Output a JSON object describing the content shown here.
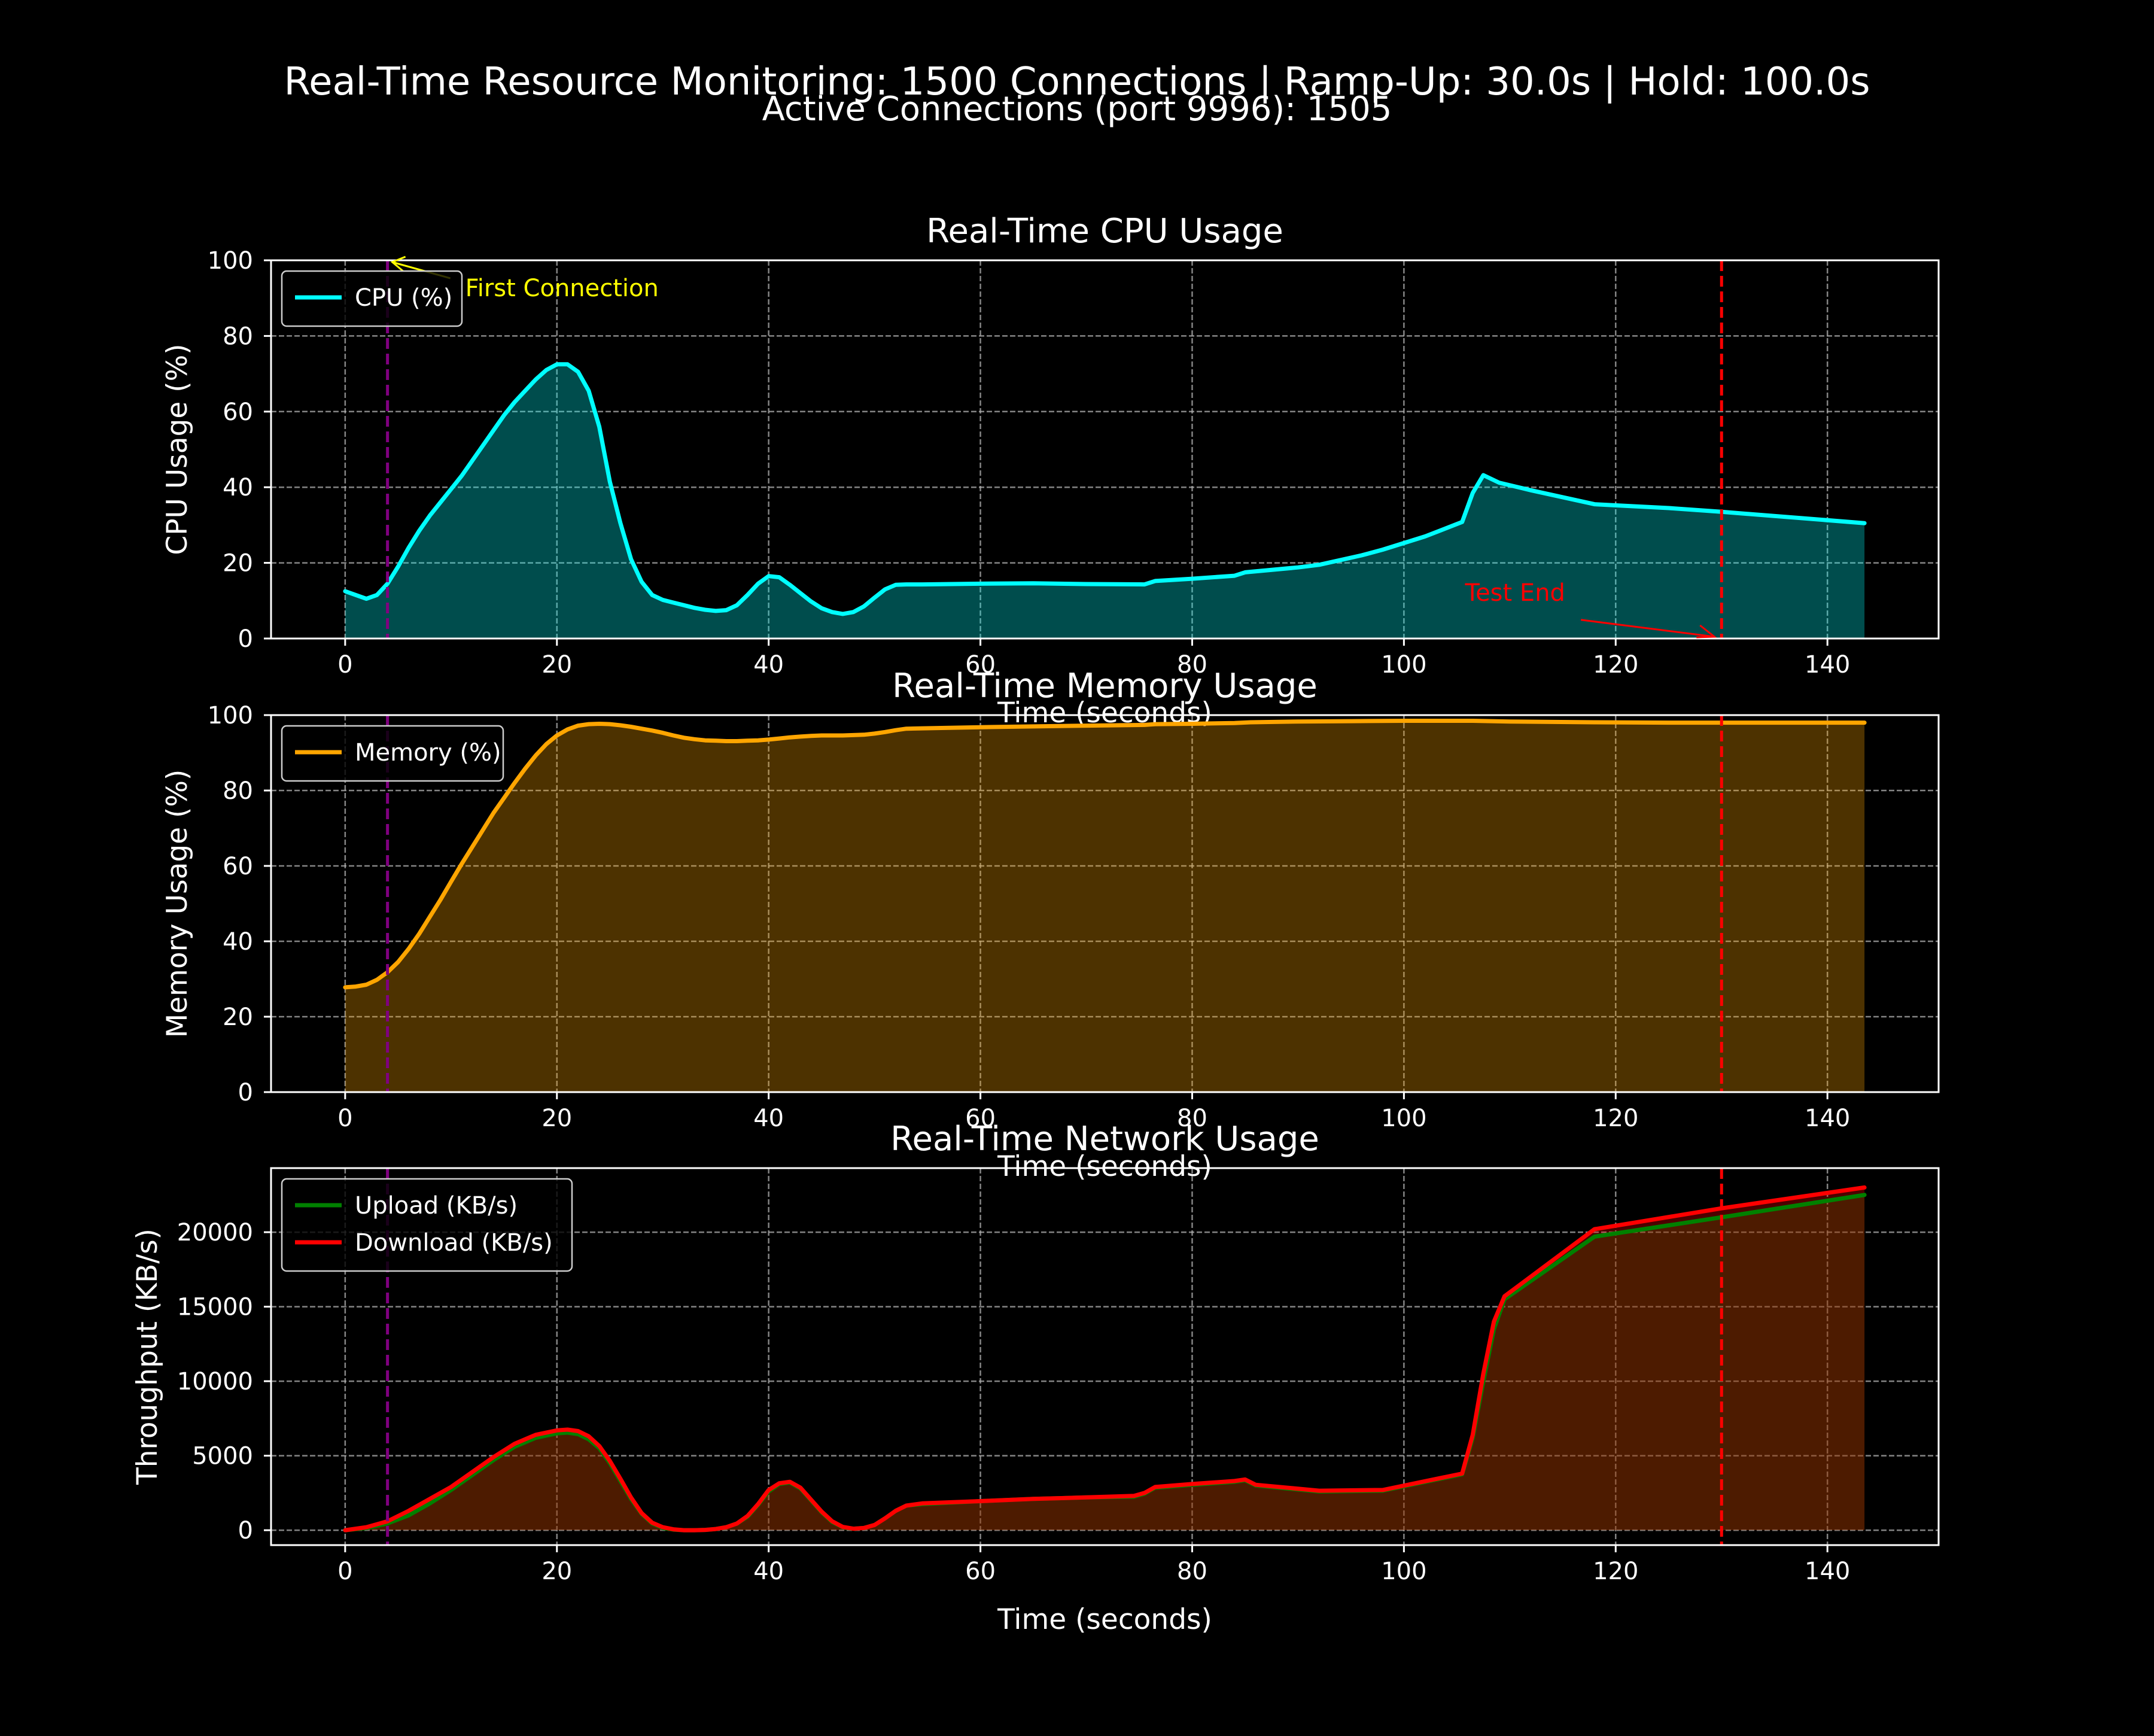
{
  "figure": {
    "suptitle": "Real-Time Resource Monitoring: 1500 Connections | Ramp-Up: 30.0s | Hold: 100.0s",
    "subtitle": "Active Connections (port 9996): 1505"
  },
  "colors": {
    "background": "#000000",
    "axes": "#ffffff",
    "grid": "#b0b0b0",
    "cpu": "#00ffff",
    "memory": "#ffa500",
    "upload": "#008000",
    "download": "#ff0000",
    "first_connection_marker": "#800080",
    "test_end_marker": "#ff0000",
    "first_connection_annotation": "#ffff00"
  },
  "chart_data": [
    {
      "type": "area",
      "title": "Real-Time CPU Usage",
      "xlabel": "Time (seconds)",
      "ylabel": "CPU Usage (%)",
      "xlim": [
        -7,
        150.5
      ],
      "ylim": [
        0,
        100
      ],
      "xticks": [
        0,
        20,
        40,
        60,
        80,
        100,
        120,
        140
      ],
      "yticks": [
        0,
        20,
        40,
        60,
        80,
        100
      ],
      "grid": true,
      "legend_position": "upper-left",
      "series": [
        {
          "name": "CPU (%)",
          "color": "#00ffff",
          "x": [
            0,
            1,
            2,
            3,
            4,
            5,
            6,
            7,
            8,
            9,
            10,
            11,
            12,
            13,
            14,
            15,
            16,
            17,
            18,
            19,
            20,
            21,
            22,
            23,
            24,
            25,
            26,
            27,
            28,
            29,
            30,
            31,
            32,
            33,
            34,
            35,
            36,
            37,
            38,
            39,
            40,
            41,
            42,
            43,
            44,
            45,
            46,
            47,
            48,
            49,
            50,
            51,
            52,
            53,
            54.5,
            60,
            65,
            70,
            75.5,
            76.5,
            80,
            84,
            85,
            90,
            92,
            96,
            98,
            102,
            105.5,
            106.5,
            107.5,
            109,
            112,
            118,
            125,
            130,
            143.5
          ],
          "values": [
            12.5,
            11.5,
            10.5,
            11.5,
            14.5,
            19,
            24,
            28.5,
            32.5,
            36,
            39.5,
            43,
            47,
            51,
            55,
            59,
            62.5,
            65.5,
            68.5,
            71,
            72.5,
            72.5,
            70.5,
            65.5,
            56,
            41.5,
            30.5,
            21,
            15,
            11.5,
            10.2,
            9.5,
            8.8,
            8.1,
            7.6,
            7.3,
            7.5,
            8.8,
            11.5,
            14.5,
            16.5,
            16.2,
            14.2,
            12,
            9.8,
            8,
            7,
            6.5,
            7,
            8.5,
            10.8,
            13,
            14.2,
            14.3,
            14.3,
            14.5,
            14.6,
            14.4,
            14.3,
            15.2,
            15.8,
            16.6,
            17.5,
            18.8,
            19.5,
            22,
            23.5,
            27,
            30.8,
            38.5,
            43.2,
            41.2,
            39.2,
            35.5,
            34.5,
            33.5,
            30.5
          ]
        }
      ],
      "annotations": [
        {
          "text": "First Connection",
          "x": 4,
          "y": 100
        },
        {
          "text": "Test End",
          "x": 130,
          "y": 0
        }
      ],
      "vlines": [
        {
          "x": 4,
          "style": "dashed",
          "color": "#800080"
        },
        {
          "x": 130,
          "style": "dashed",
          "color": "#ff0000"
        }
      ]
    },
    {
      "type": "area",
      "title": "Real-Time Memory Usage",
      "xlabel": "Time (seconds)",
      "ylabel": "Memory Usage (%)",
      "xlim": [
        -7,
        150.5
      ],
      "ylim": [
        0,
        100
      ],
      "xticks": [
        0,
        20,
        40,
        60,
        80,
        100,
        120,
        140
      ],
      "yticks": [
        0,
        20,
        40,
        60,
        80,
        100
      ],
      "grid": true,
      "legend_position": "upper-left",
      "series": [
        {
          "name": "Memory (%)",
          "color": "#ffa500",
          "x": [
            0,
            1,
            2,
            3,
            4,
            5,
            6,
            7,
            8,
            9,
            10,
            11,
            12,
            13,
            14,
            15,
            16,
            17,
            18,
            19,
            20,
            21,
            22,
            23,
            24,
            25,
            26,
            27,
            28,
            29,
            30,
            31,
            32,
            33,
            34,
            35,
            36,
            37,
            38,
            39,
            40,
            41,
            42,
            43,
            44,
            45,
            46,
            47,
            48,
            49,
            50,
            51,
            52,
            53,
            54.5,
            60,
            65,
            70,
            75.5,
            76.5,
            80,
            84,
            85.5,
            90,
            95,
            100,
            106.5,
            110,
            118,
            125,
            130,
            143.5
          ],
          "values": [
            27.8,
            28,
            28.5,
            29.8,
            31.8,
            34.5,
            38,
            42,
            46.5,
            51,
            55.8,
            60.5,
            65,
            69.5,
            74,
            78,
            82,
            85.8,
            89.3,
            92.3,
            94.6,
            96.2,
            97.2,
            97.6,
            97.7,
            97.6,
            97.3,
            96.9,
            96.4,
            95.9,
            95.3,
            94.6,
            94,
            93.6,
            93.3,
            93.2,
            93.1,
            93.1,
            93.2,
            93.3,
            93.5,
            93.8,
            94.1,
            94.3,
            94.5,
            94.6,
            94.6,
            94.6,
            94.7,
            94.8,
            95.1,
            95.5,
            96,
            96.4,
            96.5,
            96.8,
            97,
            97.2,
            97.4,
            97.6,
            97.7,
            97.9,
            98.1,
            98.3,
            98.4,
            98.5,
            98.5,
            98.3,
            98.1,
            98,
            98,
            98
          ]
        }
      ],
      "vlines": [
        {
          "x": 4,
          "style": "dashed",
          "color": "#800080"
        },
        {
          "x": 130,
          "style": "dashed",
          "color": "#ff0000"
        }
      ]
    },
    {
      "type": "area",
      "title": "Real-Time Network Usage",
      "xlabel": "Time (seconds)",
      "ylabel": "Throughput (KB/s)",
      "xlim": [
        -7,
        150.5
      ],
      "ylim": [
        -1000,
        24300
      ],
      "xticks": [
        0,
        20,
        40,
        60,
        80,
        100,
        120,
        140
      ],
      "yticks": [
        0,
        5000,
        10000,
        15000,
        20000
      ],
      "grid": true,
      "legend_position": "upper-left",
      "series": [
        {
          "name": "Upload (KB/s)",
          "color": "#008000",
          "x": [
            0,
            2,
            4,
            6,
            8,
            10,
            12,
            14,
            16,
            18,
            20,
            21,
            22,
            23,
            24,
            25,
            26,
            27,
            28,
            29,
            30,
            31,
            32,
            33,
            34,
            35,
            36,
            37,
            38,
            39,
            40,
            41,
            42,
            43,
            44,
            45,
            46,
            47,
            48,
            49,
            50,
            51,
            52,
            53,
            54.5,
            60,
            65,
            70,
            74.5,
            75.5,
            76.5,
            80,
            84,
            85,
            86,
            92,
            98,
            105.5,
            106.5,
            107.5,
            108.5,
            109.5,
            118,
            130,
            143.5
          ],
          "values": [
            0,
            150,
            450,
            1000,
            1800,
            2700,
            3700,
            4700,
            5600,
            6200,
            6500,
            6550,
            6450,
            6100,
            5500,
            4500,
            3300,
            2100,
            1100,
            450,
            150,
            40,
            0,
            0,
            20,
            80,
            200,
            450,
            900,
            1700,
            2600,
            3100,
            3200,
            2800,
            2000,
            1200,
            550,
            200,
            100,
            150,
            350,
            800,
            1300,
            1650,
            1750,
            1950,
            2100,
            2200,
            2250,
            2450,
            2850,
            3050,
            3250,
            3350,
            3000,
            2600,
            2650,
            3750,
            6200,
            10000,
            13500,
            15500,
            19700,
            21000,
            22500
          ]
        },
        {
          "name": "Download (KB/s)",
          "color": "#ff0000",
          "x": [
            0,
            2,
            4,
            6,
            8,
            10,
            12,
            14,
            16,
            18,
            20,
            21,
            22,
            23,
            24,
            25,
            26,
            27,
            28,
            29,
            30,
            31,
            32,
            33,
            34,
            35,
            36,
            37,
            38,
            39,
            40,
            41,
            42,
            43,
            44,
            45,
            46,
            47,
            48,
            49,
            50,
            51,
            52,
            53,
            54.5,
            60,
            65,
            70,
            74.5,
            75.5,
            76.5,
            80,
            84,
            85,
            86,
            92,
            98,
            105.5,
            106.5,
            107.5,
            108.5,
            109.5,
            118,
            130,
            143.5
          ],
          "values": [
            0,
            200,
            600,
            1300,
            2100,
            2900,
            3900,
            4900,
            5800,
            6400,
            6700,
            6750,
            6650,
            6300,
            5650,
            4650,
            3450,
            2200,
            1150,
            500,
            200,
            60,
            0,
            0,
            20,
            80,
            200,
            450,
            950,
            1750,
            2700,
            3150,
            3250,
            2850,
            2050,
            1250,
            600,
            220,
            100,
            150,
            350,
            800,
            1300,
            1650,
            1800,
            1950,
            2100,
            2200,
            2300,
            2500,
            2900,
            3100,
            3300,
            3400,
            3050,
            2650,
            2700,
            3800,
            6400,
            10500,
            14000,
            15700,
            20200,
            21600,
            23000
          ]
        }
      ],
      "vlines": [
        {
          "x": 4,
          "style": "dashed",
          "color": "#800080"
        },
        {
          "x": 130,
          "style": "dashed",
          "color": "#ff0000"
        }
      ]
    }
  ]
}
